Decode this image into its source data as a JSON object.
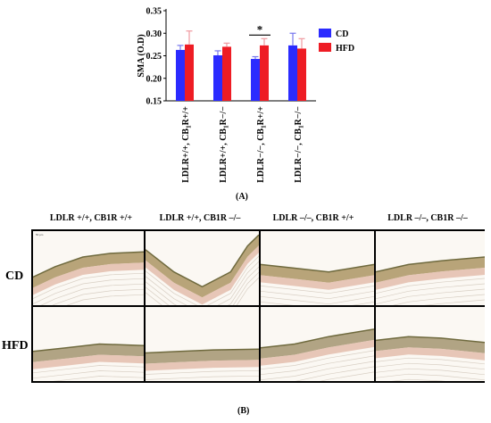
{
  "chart_data": {
    "type": "bar",
    "ylabel": "SMA (O.D)",
    "ylim": [
      0.15,
      0.35
    ],
    "yticks": [
      0.15,
      0.2,
      0.25,
      0.3,
      0.35
    ],
    "categories": [
      {
        "pre": "LDLR+/+, CB",
        "sub": "1",
        "post": "R+/+"
      },
      {
        "pre": "LDLR+/+, CB",
        "sub": "1",
        "post": "R−/−"
      },
      {
        "pre": "LDLR−/−, CB",
        "sub": "1",
        "post": "R+/+"
      },
      {
        "pre": "LDLR−/−, CB",
        "sub": "1",
        "post": "R−/−"
      }
    ],
    "series": [
      {
        "name": "CD",
        "color": "#2b2bff",
        "values": [
          0.263,
          0.251,
          0.243,
          0.273
        ],
        "errors": [
          0.01,
          0.01,
          0.005,
          0.027
        ]
      },
      {
        "name": "HFD",
        "color": "#ee1c24",
        "values": [
          0.275,
          0.27,
          0.273,
          0.266
        ],
        "errors": [
          0.03,
          0.008,
          0.015,
          0.022
        ]
      }
    ],
    "annotations": [
      {
        "text": "*",
        "category_index": 2
      }
    ],
    "legend": "right",
    "grid": false
  },
  "panel_a_label": "(A)",
  "panel_b_label": "(B)",
  "columns": [
    "LDLR +/+, CB1R +/+",
    "LDLR +/+, CB1R –/–",
    "LDLR –/–, CB1R +/+",
    "LDLR –/–, CB1R –/–"
  ],
  "rows": [
    "CD",
    "HFD"
  ],
  "scale_bar": "50 µm"
}
